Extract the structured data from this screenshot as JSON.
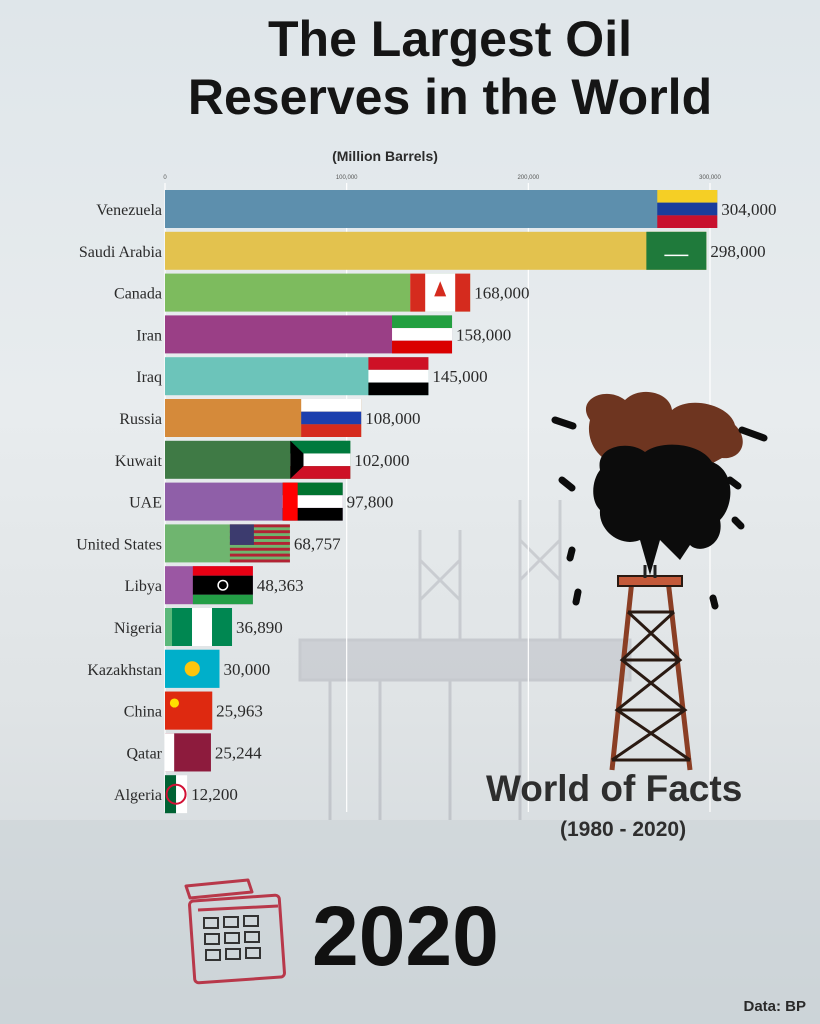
{
  "title_line1": "The Largest Oil",
  "title_line2": "Reserves in the World",
  "subtitle": "(Million Barrels)",
  "brand": "World of Facts",
  "brand_years": "(1980 - 2020)",
  "year": "2020",
  "source": "Data: BP",
  "chart_data": {
    "type": "bar",
    "orientation": "horizontal",
    "title": "The Largest Oil Reserves in the World",
    "subtitle": "(Million Barrels)",
    "xlim": [
      0,
      300000
    ],
    "xticks": [
      "0",
      "100,000",
      "200,000",
      "300,000"
    ],
    "grid": true,
    "categories": [
      "Venezuela",
      "Saudi Arabia",
      "Canada",
      "Iran",
      "Iraq",
      "Russia",
      "Kuwait",
      "UAE",
      "United States",
      "Libya",
      "Nigeria",
      "Kazakhstan",
      "China",
      "Qatar",
      "Algeria"
    ],
    "values": [
      304000,
      298000,
      168000,
      158000,
      145000,
      108000,
      102000,
      97800,
      68757,
      48363,
      36890,
      30000,
      25963,
      25244,
      12200
    ],
    "value_labels": [
      "304,000",
      "298,000",
      "168,000",
      "158,000",
      "145,000",
      "108,000",
      "102,000",
      "97,800",
      "68,757",
      "48,363",
      "36,890",
      "30,000",
      "25,963",
      "25,244",
      "12,200"
    ],
    "colors": [
      "#5d8fad",
      "#e3c24e",
      "#7dbb5e",
      "#9a3f86",
      "#6cc4ba",
      "#d58a3a",
      "#3f7a45",
      "#8f5fa8",
      "#6fb56f",
      "#9b57a3",
      "#5bb87a",
      "#48bfd4",
      "#cf4a4d",
      "#992846",
      "#c9cdd1"
    ],
    "flags": [
      "venezuela",
      "saudi-arabia",
      "canada",
      "iran",
      "iraq",
      "russia",
      "kuwait",
      "uae",
      "usa",
      "libya",
      "nigeria",
      "kazakhstan",
      "china",
      "qatar",
      "algeria"
    ]
  }
}
